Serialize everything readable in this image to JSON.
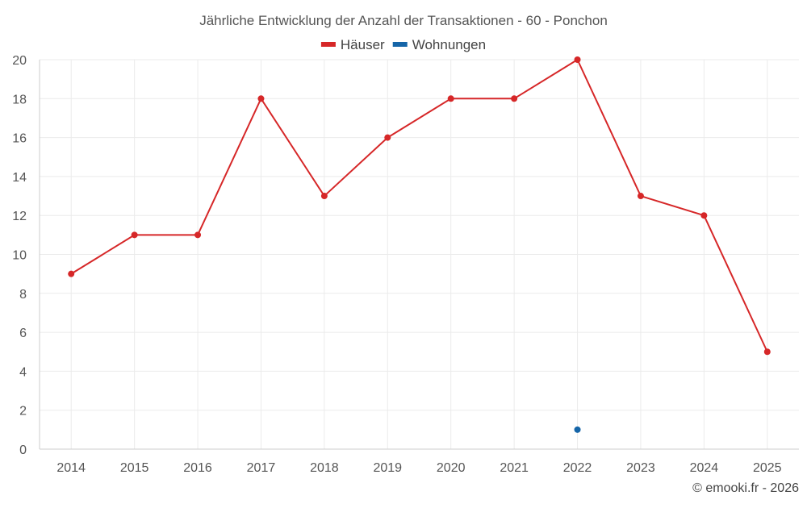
{
  "chart_data": {
    "type": "line",
    "title": "Jährliche Entwicklung der Anzahl der Transaktionen - 60 - Ponchon",
    "categories": [
      "2014",
      "2015",
      "2016",
      "2017",
      "2018",
      "2019",
      "2020",
      "2021",
      "2022",
      "2023",
      "2024",
      "2025"
    ],
    "series": [
      {
        "name": "Häuser",
        "color": "#d62728",
        "values": [
          9,
          11,
          11,
          18,
          13,
          16,
          18,
          18,
          20,
          13,
          12,
          5
        ]
      },
      {
        "name": "Wohnungen",
        "color": "#1565a8",
        "values": [
          null,
          null,
          null,
          null,
          null,
          null,
          null,
          null,
          1,
          null,
          null,
          null
        ]
      }
    ],
    "ylim": [
      0,
      20
    ],
    "yticks": [
      0,
      2,
      4,
      6,
      8,
      10,
      12,
      14,
      16,
      18,
      20
    ],
    "grid": true,
    "legend": "top-center",
    "xlabel": "",
    "ylabel": ""
  },
  "credit": "© emooki.fr - 2026"
}
